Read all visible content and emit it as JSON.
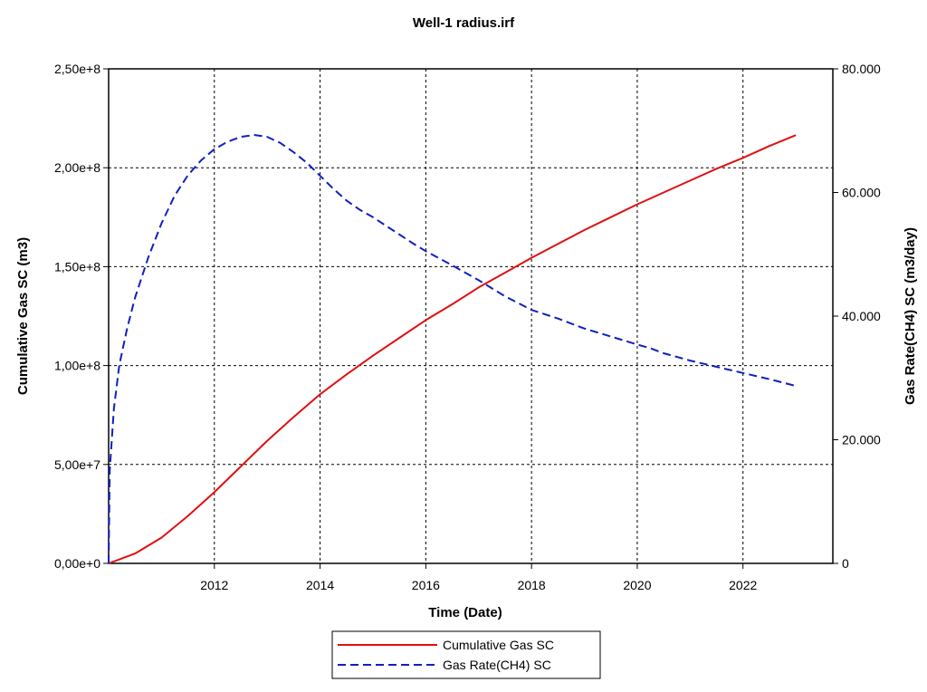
{
  "chart_data": {
    "type": "line",
    "title": "Well-1 radius.irf",
    "xlabel": "Time (Date)",
    "ylabel_left": "Cumulative Gas SC (m3)",
    "ylabel_right": "Gas Rate(CH4) SC (m3/day)",
    "xlim": [
      2010.0,
      2023.7
    ],
    "ylim_left": [
      0,
      250000000
    ],
    "ylim_right": [
      0,
      80000
    ],
    "grid": true,
    "legend_position": "bottom-center",
    "x_ticks": [
      2012,
      2014,
      2016,
      2018,
      2020,
      2022
    ],
    "x_tick_labels": [
      "2012",
      "2014",
      "2016",
      "2018",
      "2020",
      "2022"
    ],
    "y_left_ticks": [
      0,
      50000000,
      100000000,
      150000000,
      200000000,
      250000000
    ],
    "y_left_tick_labels": [
      "0,00e+0",
      "5,00e+7",
      "1,00e+8",
      "1,50e+8",
      "2,00e+8",
      "2,50e+8"
    ],
    "y_right_ticks": [
      0,
      20000,
      40000,
      60000,
      80000
    ],
    "y_right_tick_labels": [
      "0",
      "20.000",
      "40.000",
      "60.000",
      "80.000"
    ],
    "series": [
      {
        "name": "Cumulative Gas SC",
        "axis": "left",
        "color": "#e01010",
        "style": "solid",
        "x": [
          2010.0,
          2010.5,
          2011.0,
          2011.5,
          2012.0,
          2012.5,
          2013.0,
          2013.5,
          2014.0,
          2014.5,
          2015.0,
          2015.5,
          2016.0,
          2016.5,
          2017.0,
          2017.5,
          2018.0,
          2018.5,
          2019.0,
          2019.5,
          2020.0,
          2020.5,
          2021.0,
          2021.5,
          2022.0,
          2022.5,
          2023.0
        ],
        "values": [
          0,
          5000000,
          13000000,
          24000000,
          36000000,
          49000000,
          62000000,
          74000000,
          85500000,
          95500000,
          105000000,
          114000000,
          123000000,
          131000000,
          139500000,
          147000000,
          154500000,
          161500000,
          168500000,
          175000000,
          181500000,
          187500000,
          193500000,
          199500000,
          205000000,
          211000000,
          216500000
        ]
      },
      {
        "name": "Gas Rate(CH4) SC",
        "axis": "right",
        "color": "#1020c0",
        "style": "dashed",
        "x": [
          2010.0,
          2010.02,
          2010.1,
          2010.2,
          2010.35,
          2010.5,
          2010.75,
          2011.0,
          2011.25,
          2011.5,
          2011.75,
          2012.0,
          2012.25,
          2012.5,
          2012.75,
          2013.0,
          2013.25,
          2013.5,
          2013.75,
          2014.0,
          2014.25,
          2014.5,
          2014.75,
          2015.0,
          2015.25,
          2015.5,
          2015.75,
          2016.0,
          2016.5,
          2017.0,
          2017.5,
          2018.0,
          2018.5,
          2019.0,
          2019.5,
          2020.0,
          2020.25,
          2020.5,
          2021.0,
          2021.5,
          2022.0,
          2022.5,
          2023.0
        ],
        "values": [
          0,
          15000,
          25000,
          32000,
          38000,
          43000,
          49500,
          55000,
          59500,
          62800,
          65200,
          67000,
          68200,
          69000,
          69300,
          69000,
          68000,
          66500,
          64800,
          62700,
          60600,
          58700,
          57200,
          56000,
          54600,
          53200,
          51800,
          50500,
          48200,
          45800,
          43200,
          41000,
          39600,
          38000,
          36700,
          35400,
          34800,
          34000,
          32800,
          31800,
          30800,
          29800,
          28700
        ]
      }
    ]
  }
}
